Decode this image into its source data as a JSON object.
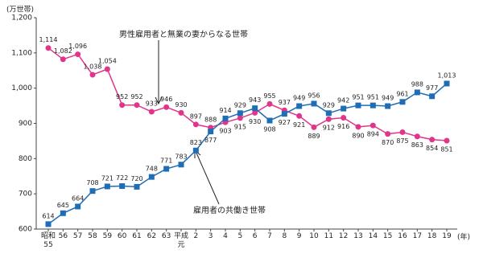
{
  "chart_data": {
    "type": "line",
    "y_unit": "(万世帯)",
    "x_unit": "(年)",
    "categories": [
      "昭和\n55",
      "56",
      "57",
      "58",
      "59",
      "60",
      "61",
      "62",
      "63",
      "平成\n元",
      "2",
      "3",
      "4",
      "5",
      "6",
      "7",
      "8",
      "9",
      "10",
      "11",
      "12",
      "13",
      "14",
      "15",
      "16",
      "17",
      "18",
      "19"
    ],
    "series": [
      {
        "name": "男性雇用者と無業の妻からなる世帯",
        "color": "#e0358a",
        "marker": "circle",
        "values": [
          1114,
          1082,
          1096,
          1038,
          1054,
          952,
          952,
          933,
          946,
          930,
          897,
          888,
          903,
          915,
          930,
          955,
          937,
          921,
          889,
          912,
          916,
          890,
          894,
          870,
          875,
          863,
          854,
          851
        ],
        "value_labels": [
          "1,114",
          "1,082",
          "1,096",
          "1,038",
          "1,054",
          "952",
          "952",
          "933",
          "946",
          "930",
          "897",
          "888",
          "903",
          "915",
          "930",
          "955",
          "937",
          "921",
          "889",
          "912",
          "916",
          "890",
          "894",
          "870",
          "875",
          "863",
          "854",
          "851"
        ]
      },
      {
        "name": "雇用者の共働き世帯",
        "color": "#1f6db5",
        "marker": "square",
        "values": [
          614,
          645,
          664,
          708,
          721,
          722,
          720,
          748,
          771,
          783,
          823,
          877,
          914,
          929,
          943,
          908,
          927,
          949,
          956,
          929,
          942,
          951,
          951,
          949,
          961,
          988,
          977,
          1013
        ],
        "value_labels": [
          "614",
          "645",
          "664",
          "708",
          "721",
          "722",
          "720",
          "748",
          "771",
          "783",
          "823",
          "877",
          "914",
          "929",
          "943",
          "908",
          "927",
          "949",
          "956",
          "929",
          "942",
          "951",
          "951",
          "949",
          "961",
          "988",
          "977",
          "1,013"
        ]
      }
    ],
    "ylim": [
      600,
      1200
    ],
    "yticks": [
      600,
      700,
      800,
      900,
      {
        "value": 1000,
        "label": "1,000"
      },
      {
        "value": 1100,
        "label": "1,100"
      },
      {
        "value": 1200,
        "label": "1,200"
      }
    ],
    "grid": false
  }
}
